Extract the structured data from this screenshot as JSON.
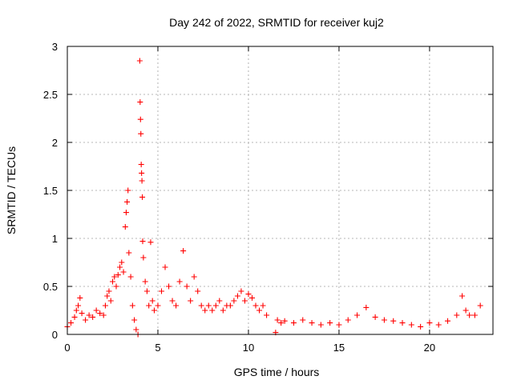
{
  "chart_data": {
    "type": "scatter",
    "title": "Day 242 of 2022, SRMTID for receiver kuj2",
    "xlabel": "GPS time / hours",
    "ylabel": "SRMTID / TECUs",
    "xlim": [
      0,
      23.5
    ],
    "ylim": [
      0,
      3
    ],
    "xticks": [
      0,
      5,
      10,
      15,
      20
    ],
    "xtick_labels": [
      "0",
      "5",
      "10",
      "15",
      "20"
    ],
    "yticks": [
      0,
      0.5,
      1,
      1.5,
      2,
      2.5,
      3
    ],
    "ytick_labels": [
      "0",
      "0.5",
      "1",
      "1.5",
      "2",
      "2.5",
      "3"
    ],
    "grid": true,
    "marker": "+",
    "color": "#ff0000",
    "series": [
      {
        "name": "SRMTID",
        "points": [
          [
            0.0,
            0.08
          ],
          [
            0.2,
            0.12
          ],
          [
            0.4,
            0.18
          ],
          [
            0.5,
            0.25
          ],
          [
            0.6,
            0.3
          ],
          [
            0.7,
            0.38
          ],
          [
            0.8,
            0.22
          ],
          [
            1.0,
            0.15
          ],
          [
            1.2,
            0.2
          ],
          [
            1.4,
            0.18
          ],
          [
            1.6,
            0.25
          ],
          [
            1.8,
            0.22
          ],
          [
            2.0,
            0.2
          ],
          [
            2.1,
            0.3
          ],
          [
            2.2,
            0.4
          ],
          [
            2.3,
            0.45
          ],
          [
            2.4,
            0.35
          ],
          [
            2.5,
            0.55
          ],
          [
            2.6,
            0.6
          ],
          [
            2.7,
            0.5
          ],
          [
            2.8,
            0.62
          ],
          [
            2.9,
            0.7
          ],
          [
            3.0,
            0.75
          ],
          [
            3.1,
            0.65
          ],
          [
            3.2,
            1.12
          ],
          [
            3.25,
            1.27
          ],
          [
            3.3,
            1.38
          ],
          [
            3.35,
            1.5
          ],
          [
            3.4,
            0.85
          ],
          [
            3.5,
            0.6
          ],
          [
            3.6,
            0.3
          ],
          [
            3.7,
            0.15
          ],
          [
            3.8,
            0.05
          ],
          [
            3.9,
            0.0
          ],
          [
            4.0,
            2.85
          ],
          [
            4.02,
            2.42
          ],
          [
            4.04,
            2.24
          ],
          [
            4.06,
            2.09
          ],
          [
            4.08,
            1.77
          ],
          [
            4.1,
            1.68
          ],
          [
            4.12,
            1.6
          ],
          [
            4.14,
            1.43
          ],
          [
            4.16,
            0.97
          ],
          [
            4.2,
            0.8
          ],
          [
            4.3,
            0.55
          ],
          [
            4.4,
            0.45
          ],
          [
            4.5,
            0.3
          ],
          [
            4.6,
            0.96
          ],
          [
            4.7,
            0.35
          ],
          [
            4.8,
            0.25
          ],
          [
            5.0,
            0.3
          ],
          [
            5.2,
            0.45
          ],
          [
            5.4,
            0.7
          ],
          [
            5.6,
            0.5
          ],
          [
            5.8,
            0.35
          ],
          [
            6.0,
            0.3
          ],
          [
            6.2,
            0.55
          ],
          [
            6.4,
            0.87
          ],
          [
            6.6,
            0.5
          ],
          [
            6.8,
            0.35
          ],
          [
            7.0,
            0.6
          ],
          [
            7.2,
            0.45
          ],
          [
            7.4,
            0.3
          ],
          [
            7.6,
            0.25
          ],
          [
            7.8,
            0.3
          ],
          [
            8.0,
            0.25
          ],
          [
            8.2,
            0.3
          ],
          [
            8.4,
            0.35
          ],
          [
            8.6,
            0.25
          ],
          [
            8.8,
            0.3
          ],
          [
            9.0,
            0.3
          ],
          [
            9.2,
            0.35
          ],
          [
            9.4,
            0.4
          ],
          [
            9.6,
            0.45
          ],
          [
            9.8,
            0.35
          ],
          [
            10.0,
            0.42
          ],
          [
            10.2,
            0.38
          ],
          [
            10.4,
            0.3
          ],
          [
            10.6,
            0.25
          ],
          [
            10.8,
            0.3
          ],
          [
            11.0,
            0.2
          ],
          [
            11.5,
            0.02
          ],
          [
            11.6,
            0.15
          ],
          [
            11.8,
            0.12
          ],
          [
            12.0,
            0.14
          ],
          [
            12.5,
            0.12
          ],
          [
            13.0,
            0.15
          ],
          [
            13.5,
            0.12
          ],
          [
            14.0,
            0.1
          ],
          [
            14.5,
            0.12
          ],
          [
            15.0,
            0.1
          ],
          [
            15.5,
            0.15
          ],
          [
            16.0,
            0.2
          ],
          [
            16.5,
            0.28
          ],
          [
            17.0,
            0.18
          ],
          [
            17.5,
            0.15
          ],
          [
            18.0,
            0.14
          ],
          [
            18.5,
            0.12
          ],
          [
            19.0,
            0.1
          ],
          [
            19.5,
            0.08
          ],
          [
            20.0,
            0.12
          ],
          [
            20.5,
            0.1
          ],
          [
            21.0,
            0.14
          ],
          [
            21.5,
            0.2
          ],
          [
            21.8,
            0.4
          ],
          [
            22.0,
            0.25
          ],
          [
            22.2,
            0.2
          ],
          [
            22.5,
            0.2
          ],
          [
            22.8,
            0.3
          ]
        ]
      }
    ]
  }
}
